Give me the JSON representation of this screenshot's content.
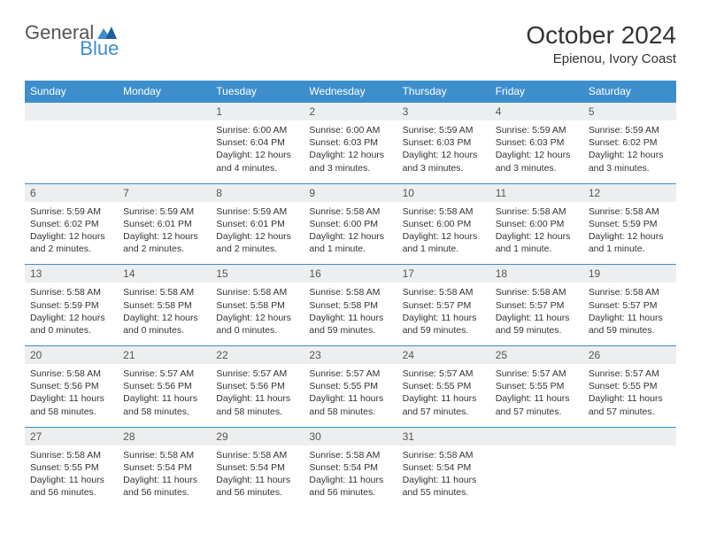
{
  "brand": {
    "part1": "General",
    "part2": "Blue"
  },
  "title": "October 2024",
  "location": "Epienou, Ivory Coast",
  "colors": {
    "header_bg": "#3d8ecc",
    "header_text": "#ffffff",
    "date_row_bg": "#eceeef",
    "border": "#3d8ecc",
    "body_text": "#333333",
    "background": "#ffffff"
  },
  "day_headers": [
    "Sunday",
    "Monday",
    "Tuesday",
    "Wednesday",
    "Thursday",
    "Friday",
    "Saturday"
  ],
  "weeks": [
    {
      "dates": [
        "",
        "",
        "1",
        "2",
        "3",
        "4",
        "5"
      ],
      "cells": [
        {},
        {},
        {
          "sunrise": "Sunrise: 6:00 AM",
          "sunset": "Sunset: 6:04 PM",
          "daylight": "Daylight: 12 hours and 4 minutes."
        },
        {
          "sunrise": "Sunrise: 6:00 AM",
          "sunset": "Sunset: 6:03 PM",
          "daylight": "Daylight: 12 hours and 3 minutes."
        },
        {
          "sunrise": "Sunrise: 5:59 AM",
          "sunset": "Sunset: 6:03 PM",
          "daylight": "Daylight: 12 hours and 3 minutes."
        },
        {
          "sunrise": "Sunrise: 5:59 AM",
          "sunset": "Sunset: 6:03 PM",
          "daylight": "Daylight: 12 hours and 3 minutes."
        },
        {
          "sunrise": "Sunrise: 5:59 AM",
          "sunset": "Sunset: 6:02 PM",
          "daylight": "Daylight: 12 hours and 3 minutes."
        }
      ]
    },
    {
      "dates": [
        "6",
        "7",
        "8",
        "9",
        "10",
        "11",
        "12"
      ],
      "cells": [
        {
          "sunrise": "Sunrise: 5:59 AM",
          "sunset": "Sunset: 6:02 PM",
          "daylight": "Daylight: 12 hours and 2 minutes."
        },
        {
          "sunrise": "Sunrise: 5:59 AM",
          "sunset": "Sunset: 6:01 PM",
          "daylight": "Daylight: 12 hours and 2 minutes."
        },
        {
          "sunrise": "Sunrise: 5:59 AM",
          "sunset": "Sunset: 6:01 PM",
          "daylight": "Daylight: 12 hours and 2 minutes."
        },
        {
          "sunrise": "Sunrise: 5:58 AM",
          "sunset": "Sunset: 6:00 PM",
          "daylight": "Daylight: 12 hours and 1 minute."
        },
        {
          "sunrise": "Sunrise: 5:58 AM",
          "sunset": "Sunset: 6:00 PM",
          "daylight": "Daylight: 12 hours and 1 minute."
        },
        {
          "sunrise": "Sunrise: 5:58 AM",
          "sunset": "Sunset: 6:00 PM",
          "daylight": "Daylight: 12 hours and 1 minute."
        },
        {
          "sunrise": "Sunrise: 5:58 AM",
          "sunset": "Sunset: 5:59 PM",
          "daylight": "Daylight: 12 hours and 1 minute."
        }
      ]
    },
    {
      "dates": [
        "13",
        "14",
        "15",
        "16",
        "17",
        "18",
        "19"
      ],
      "cells": [
        {
          "sunrise": "Sunrise: 5:58 AM",
          "sunset": "Sunset: 5:59 PM",
          "daylight": "Daylight: 12 hours and 0 minutes."
        },
        {
          "sunrise": "Sunrise: 5:58 AM",
          "sunset": "Sunset: 5:58 PM",
          "daylight": "Daylight: 12 hours and 0 minutes."
        },
        {
          "sunrise": "Sunrise: 5:58 AM",
          "sunset": "Sunset: 5:58 PM",
          "daylight": "Daylight: 12 hours and 0 minutes."
        },
        {
          "sunrise": "Sunrise: 5:58 AM",
          "sunset": "Sunset: 5:58 PM",
          "daylight": "Daylight: 11 hours and 59 minutes."
        },
        {
          "sunrise": "Sunrise: 5:58 AM",
          "sunset": "Sunset: 5:57 PM",
          "daylight": "Daylight: 11 hours and 59 minutes."
        },
        {
          "sunrise": "Sunrise: 5:58 AM",
          "sunset": "Sunset: 5:57 PM",
          "daylight": "Daylight: 11 hours and 59 minutes."
        },
        {
          "sunrise": "Sunrise: 5:58 AM",
          "sunset": "Sunset: 5:57 PM",
          "daylight": "Daylight: 11 hours and 59 minutes."
        }
      ]
    },
    {
      "dates": [
        "20",
        "21",
        "22",
        "23",
        "24",
        "25",
        "26"
      ],
      "cells": [
        {
          "sunrise": "Sunrise: 5:58 AM",
          "sunset": "Sunset: 5:56 PM",
          "daylight": "Daylight: 11 hours and 58 minutes."
        },
        {
          "sunrise": "Sunrise: 5:57 AM",
          "sunset": "Sunset: 5:56 PM",
          "daylight": "Daylight: 11 hours and 58 minutes."
        },
        {
          "sunrise": "Sunrise: 5:57 AM",
          "sunset": "Sunset: 5:56 PM",
          "daylight": "Daylight: 11 hours and 58 minutes."
        },
        {
          "sunrise": "Sunrise: 5:57 AM",
          "sunset": "Sunset: 5:55 PM",
          "daylight": "Daylight: 11 hours and 58 minutes."
        },
        {
          "sunrise": "Sunrise: 5:57 AM",
          "sunset": "Sunset: 5:55 PM",
          "daylight": "Daylight: 11 hours and 57 minutes."
        },
        {
          "sunrise": "Sunrise: 5:57 AM",
          "sunset": "Sunset: 5:55 PM",
          "daylight": "Daylight: 11 hours and 57 minutes."
        },
        {
          "sunrise": "Sunrise: 5:57 AM",
          "sunset": "Sunset: 5:55 PM",
          "daylight": "Daylight: 11 hours and 57 minutes."
        }
      ]
    },
    {
      "dates": [
        "27",
        "28",
        "29",
        "30",
        "31",
        "",
        ""
      ],
      "cells": [
        {
          "sunrise": "Sunrise: 5:58 AM",
          "sunset": "Sunset: 5:55 PM",
          "daylight": "Daylight: 11 hours and 56 minutes."
        },
        {
          "sunrise": "Sunrise: 5:58 AM",
          "sunset": "Sunset: 5:54 PM",
          "daylight": "Daylight: 11 hours and 56 minutes."
        },
        {
          "sunrise": "Sunrise: 5:58 AM",
          "sunset": "Sunset: 5:54 PM",
          "daylight": "Daylight: 11 hours and 56 minutes."
        },
        {
          "sunrise": "Sunrise: 5:58 AM",
          "sunset": "Sunset: 5:54 PM",
          "daylight": "Daylight: 11 hours and 56 minutes."
        },
        {
          "sunrise": "Sunrise: 5:58 AM",
          "sunset": "Sunset: 5:54 PM",
          "daylight": "Daylight: 11 hours and 55 minutes."
        },
        {},
        {}
      ]
    }
  ]
}
